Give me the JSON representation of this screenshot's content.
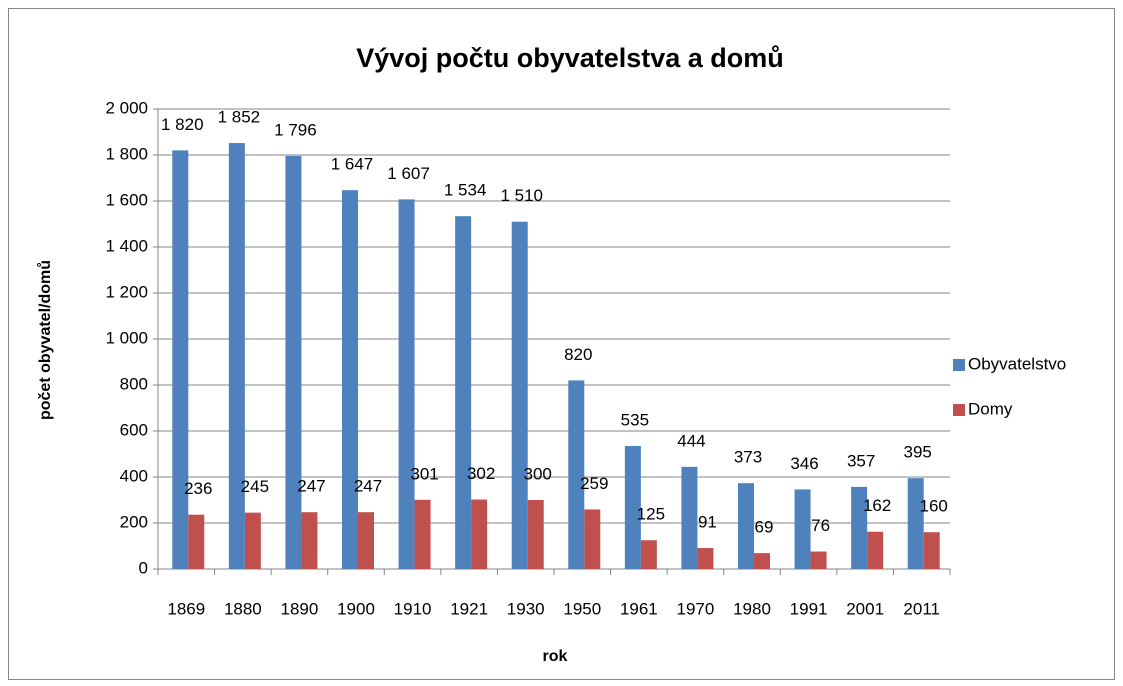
{
  "chart_data": {
    "type": "bar",
    "title": "Vývoj počtu obyvatelstva a domů",
    "x_label": "rok",
    "y_label": "počet obyvatel/domů",
    "categories": [
      "1869",
      "1880",
      "1890",
      "1900",
      "1910",
      "1921",
      "1930",
      "1950",
      "1961",
      "1970",
      "1980",
      "1991",
      "2001",
      "2011"
    ],
    "series": [
      {
        "name": "Obyvatelstvo",
        "color": "#4f81bd",
        "values": [
          1820,
          1852,
          1796,
          1647,
          1607,
          1534,
          1510,
          820,
          535,
          444,
          373,
          346,
          357,
          395
        ],
        "value_labels": [
          "1 820",
          "1 852",
          "1 796",
          "1 647",
          "1 607",
          "1 534",
          "1 510",
          "820",
          "535",
          "444",
          "373",
          "346",
          "357",
          "395"
        ]
      },
      {
        "name": "Domy",
        "color": "#c0504d",
        "values": [
          236,
          245,
          247,
          247,
          301,
          302,
          300,
          259,
          125,
          91,
          69,
          76,
          162,
          160
        ],
        "value_labels": [
          "236",
          "245",
          "247",
          "247",
          "301",
          "302",
          "300",
          "259",
          "125",
          "91",
          "69",
          "76",
          "162",
          "160"
        ]
      }
    ],
    "ylim": [
      0,
      2000
    ],
    "yticks": [
      0,
      200,
      400,
      600,
      800,
      {
        "value": 1000,
        "label": "1 000"
      },
      {
        "value": 1200,
        "label": "1 200"
      },
      {
        "value": 1400,
        "label": "1 400"
      },
      {
        "value": 1600,
        "label": "1 600"
      },
      {
        "value": 1800,
        "label": "1 800"
      },
      {
        "value": 2000,
        "label": "2 000"
      }
    ],
    "grid": true,
    "legend": "right"
  }
}
